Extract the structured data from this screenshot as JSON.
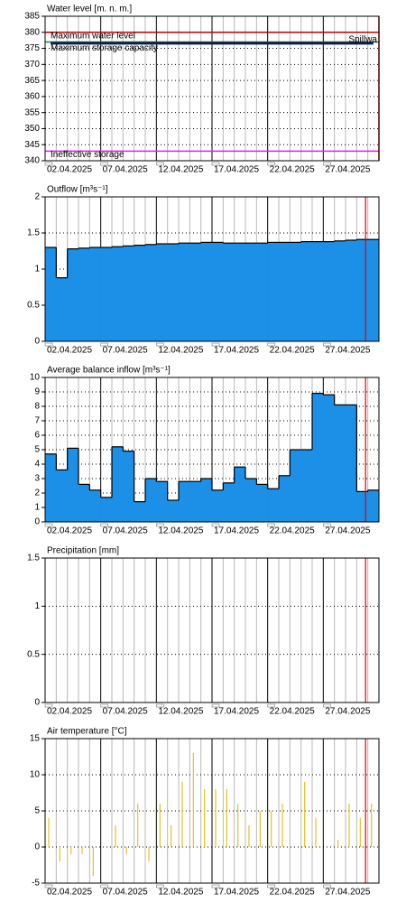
{
  "chart_data": [
    {
      "type": "line",
      "title": "Water level [m. n. m.]",
      "categories": [
        "02.04.2025",
        null,
        null,
        null,
        null,
        "07.04.2025",
        null,
        null,
        null,
        null,
        "12.04.2025",
        null,
        null,
        null,
        null,
        "17.04.2025",
        null,
        null,
        null,
        null,
        "22.04.2025",
        null,
        null,
        null,
        null,
        "27.04.2025",
        null,
        null,
        null,
        null
      ],
      "values": [
        376.6,
        376.6,
        376.6,
        376.6,
        376.6,
        376.6,
        376.6,
        376.6,
        376.6,
        376.6,
        376.6,
        376.6,
        376.6,
        376.6,
        376.6,
        376.6,
        376.6,
        376.6,
        376.6,
        376.6,
        376.6,
        376.6,
        376.6,
        376.6,
        376.6,
        376.6,
        376.6,
        376.6,
        376.6,
        376.6
      ],
      "color": "#0b1f4f",
      "reference_lines": [
        {
          "label": "Maximum water level",
          "value": 380,
          "color": "#c00000"
        },
        {
          "label": "Maximum storage capacity",
          "value": 377,
          "color": "#2e7d32"
        },
        {
          "label": "Ineffective storage",
          "value": 343,
          "color": "#e020e0"
        }
      ],
      "annotations": [
        {
          "text": "Spillwa",
          "color": "#e8a040"
        }
      ],
      "ylim": [
        340,
        385
      ],
      "yticks": [
        340,
        345,
        350,
        355,
        360,
        365,
        370,
        375,
        380,
        385
      ],
      "grid": true
    },
    {
      "type": "area",
      "title": "Outflow [m³s⁻¹]",
      "categories": [
        "02.04.2025",
        null,
        null,
        null,
        null,
        "07.04.2025",
        null,
        null,
        null,
        null,
        "12.04.2025",
        null,
        null,
        null,
        null,
        "17.04.2025",
        null,
        null,
        null,
        null,
        "22.04.2025",
        null,
        null,
        null,
        null,
        "27.04.2025",
        null,
        null,
        null,
        null
      ],
      "values": [
        1.3,
        0.88,
        1.28,
        1.29,
        1.3,
        1.3,
        1.31,
        1.32,
        1.33,
        1.34,
        1.35,
        1.35,
        1.36,
        1.36,
        1.37,
        1.37,
        1.36,
        1.36,
        1.36,
        1.36,
        1.37,
        1.37,
        1.37,
        1.38,
        1.38,
        1.38,
        1.39,
        1.4,
        1.41,
        1.41
      ],
      "color": "#1c8fe6",
      "now": 28.8,
      "ylim": [
        0,
        2
      ],
      "yticks": [
        0,
        0.5,
        1,
        1.5,
        2
      ],
      "grid": true
    },
    {
      "type": "area",
      "title": "Average balance inflow  [m³s⁻¹]",
      "categories": [
        "02.04.2025",
        null,
        null,
        null,
        null,
        "07.04.2025",
        null,
        null,
        null,
        null,
        "12.04.2025",
        null,
        null,
        null,
        null,
        "17.04.2025",
        null,
        null,
        null,
        null,
        "22.04.2025",
        null,
        null,
        null,
        null,
        "27.04.2025",
        null,
        null,
        null,
        null
      ],
      "values": [
        4.7,
        3.6,
        5.1,
        2.6,
        2.2,
        1.7,
        5.2,
        4.9,
        1.4,
        3.0,
        2.8,
        1.5,
        2.8,
        2.8,
        3.0,
        2.2,
        2.7,
        3.8,
        3.0,
        2.6,
        2.3,
        3.2,
        5.0,
        5.0,
        8.9,
        8.8,
        8.1,
        8.1,
        2.1,
        2.2
      ],
      "color": "#1c8fe6",
      "now": 28.8,
      "ylim": [
        0,
        10
      ],
      "yticks": [
        0,
        1,
        2,
        3,
        4,
        5,
        6,
        7,
        8,
        9,
        10
      ],
      "grid": true
    },
    {
      "type": "bar",
      "title": "Precipitation [mm]",
      "categories": [
        "02.04.2025",
        null,
        null,
        null,
        null,
        "07.04.2025",
        null,
        null,
        null,
        null,
        "12.04.2025",
        null,
        null,
        null,
        null,
        "17.04.2025",
        null,
        null,
        null,
        null,
        "22.04.2025",
        null,
        null,
        null,
        null,
        "27.04.2025",
        null,
        null,
        null,
        null
      ],
      "color": "#1c8fe6",
      "now": 28.8,
      "ylim": [
        0,
        1.5
      ],
      "yticks": [
        0,
        0.5,
        1,
        1.5
      ],
      "grid": true
    },
    {
      "type": "bar",
      "title": "Air temperature [°C]",
      "categories": [
        "02.04.2025",
        null,
        null,
        null,
        null,
        "07.04.2025",
        null,
        null,
        null,
        null,
        "12.04.2025",
        null,
        null,
        null,
        null,
        "17.04.2025",
        null,
        null,
        null,
        null,
        "22.04.2025",
        null,
        null,
        null,
        null,
        "27.04.2025",
        null,
        null,
        null,
        null
      ],
      "values": [
        4,
        -2,
        -1,
        -1,
        -4,
        0,
        3,
        -1,
        6,
        -2,
        6,
        3,
        9,
        13,
        8,
        8,
        8,
        6,
        3,
        5,
        5,
        6,
        0,
        9,
        4,
        0,
        1,
        6,
        4,
        6
      ],
      "color": "#e8c020",
      "now": 28.8,
      "ylim": [
        -5,
        15
      ],
      "yticks": [
        -5,
        0,
        5,
        10,
        15
      ],
      "grid": true
    }
  ]
}
